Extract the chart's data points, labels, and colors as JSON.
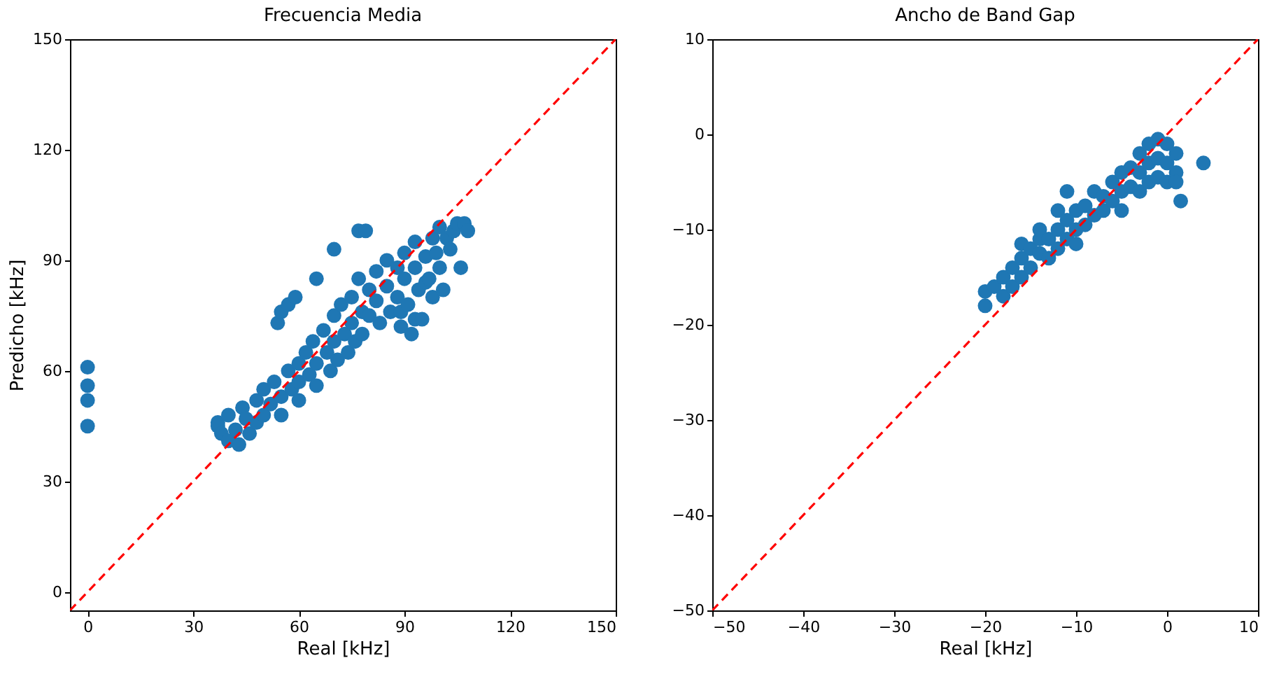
{
  "chart_data": [
    {
      "type": "scatter",
      "title": "Frecuencia Media",
      "xlabel": "Real [kHz]",
      "ylabel": "Predicho [kHz]",
      "xlim": [
        -5,
        150
      ],
      "ylim": [
        -5,
        150
      ],
      "xticks": [
        0,
        30,
        60,
        90,
        120,
        150
      ],
      "yticks": [
        0,
        30,
        60,
        90,
        120,
        150
      ],
      "grid": false,
      "series": [
        {
          "marker": "circle",
          "color": "#1f77b4",
          "x": [
            0,
            0,
            0,
            0,
            37,
            37,
            38,
            40,
            40,
            42,
            43,
            44,
            45,
            46,
            48,
            48,
            50,
            50,
            52,
            53,
            54,
            55,
            55,
            55,
            57,
            57,
            58,
            59,
            60,
            60,
            60,
            62,
            63,
            64,
            65,
            65,
            65,
            67,
            68,
            69,
            70,
            70,
            70,
            71,
            72,
            73,
            74,
            75,
            75,
            76,
            77,
            77,
            78,
            78,
            79,
            80,
            80,
            82,
            82,
            83,
            85,
            85,
            86,
            88,
            88,
            89,
            89,
            90,
            90,
            91,
            92,
            93,
            93,
            93,
            94,
            95,
            96,
            96,
            97,
            98,
            98,
            99,
            100,
            100,
            101,
            102,
            103,
            104,
            105,
            106,
            107,
            108
          ],
          "values": [
            61,
            56,
            52,
            45,
            46,
            45,
            43,
            41,
            48,
            44,
            40,
            50,
            47,
            43,
            52,
            46,
            55,
            48,
            51,
            57,
            73,
            53,
            48,
            76,
            60,
            78,
            55,
            80,
            62,
            57,
            52,
            65,
            59,
            68,
            62,
            56,
            85,
            71,
            65,
            60,
            75,
            68,
            93,
            63,
            78,
            70,
            65,
            80,
            73,
            68,
            85,
            98,
            76,
            70,
            98,
            82,
            75,
            87,
            79,
            73,
            90,
            83,
            76,
            88,
            80,
            72,
            76,
            92,
            85,
            78,
            70,
            95,
            88,
            74,
            82,
            74,
            91,
            84,
            85,
            96,
            80,
            92,
            99,
            88,
            82,
            96,
            93,
            98,
            100,
            88,
            100,
            98
          ]
        },
        {
          "type": "line",
          "marker": "none",
          "line_style": "dashed",
          "color": "#ff0000",
          "x": [
            -5,
            150
          ],
          "values": [
            -5,
            150
          ]
        }
      ]
    },
    {
      "type": "scatter",
      "title": "Ancho de Band Gap",
      "xlabel": "Real [kHz]",
      "xlim": [
        -50,
        10
      ],
      "ylim": [
        -50,
        10
      ],
      "xticks": [
        -50,
        -40,
        -30,
        -20,
        -10,
        0,
        10
      ],
      "yticks": [
        -50,
        -40,
        -30,
        -20,
        -10,
        0,
        10
      ],
      "grid": false,
      "series": [
        {
          "marker": "circle",
          "color": "#1f77b4",
          "x": [
            -20,
            -20,
            -19,
            -18,
            -18,
            -17,
            -17,
            -16,
            -16,
            -16,
            -15,
            -15,
            -14,
            -14,
            -14,
            -13,
            -13,
            -12,
            -12,
            -12,
            -11,
            -11,
            -11,
            -10,
            -10,
            -10,
            -9,
            -9,
            -8,
            -8,
            -7,
            -7,
            -6,
            -6,
            -5,
            -5,
            -5,
            -4,
            -4,
            -3,
            -3,
            -3,
            -2,
            -2,
            -2,
            -1,
            -1,
            -1,
            0,
            0,
            0,
            1,
            1,
            1,
            1.5,
            4
          ],
          "values": [
            -18,
            -16.5,
            -16,
            -17,
            -15,
            -14,
            -16,
            -13,
            -15,
            -11.5,
            -12,
            -14,
            -12.5,
            -11,
            -10,
            -13,
            -11,
            -10,
            -12,
            -8,
            -9,
            -11,
            -6,
            -8,
            -10,
            -11.5,
            -7.5,
            -9.5,
            -6,
            -8.5,
            -6.5,
            -8,
            -5,
            -7,
            -4,
            -6,
            -8,
            -3.5,
            -5.5,
            -2,
            -4,
            -6,
            -1,
            -3,
            -5,
            -0.5,
            -2.5,
            -4.5,
            -1,
            -3,
            -5,
            -2,
            -4,
            -5,
            -7,
            -3
          ]
        },
        {
          "type": "line",
          "marker": "none",
          "line_style": "dashed",
          "color": "#ff0000",
          "x": [
            -50,
            10
          ],
          "values": [
            -50,
            10
          ]
        }
      ]
    }
  ]
}
